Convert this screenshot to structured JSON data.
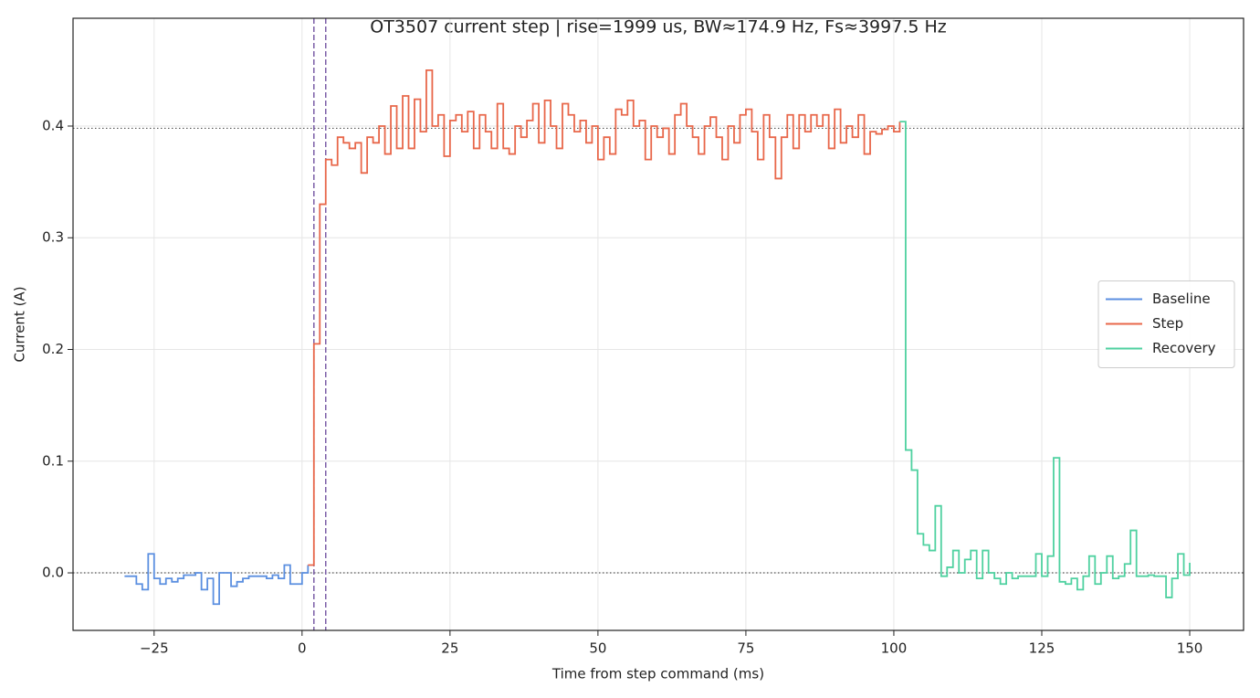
{
  "chart_data": {
    "type": "line",
    "drawstyle": "steps-post",
    "title": "OT3507 current step | rise=1999 us, BW≈174.9 Hz, Fs≈3997.5 Hz",
    "xlabel": "Time from step command (ms)",
    "ylabel": "Current (A)",
    "xlim": [
      -38.7,
      159.1
    ],
    "ylim": [
      -0.0515,
      0.4965
    ],
    "xticks": [
      {
        "value": -25,
        "label": "−25"
      },
      0,
      25,
      50,
      75,
      100,
      125,
      150
    ],
    "yticks": [
      {
        "value": 0,
        "label": "0.0"
      },
      0.1,
      0.2,
      0.3,
      0.4
    ],
    "grid": true,
    "legend": "center right",
    "hlines": [
      0,
      0.398
    ],
    "vlines": [
      2.0,
      4.0
    ],
    "series": [
      {
        "name": "Baseline",
        "color": "#5b8fe0",
        "x": [
          -30,
          -29,
          -28,
          -27,
          -26,
          -25,
          -24,
          -23,
          -22,
          -21,
          -20,
          -19,
          -18,
          -17,
          -16,
          -15,
          -14,
          -13,
          -12,
          -11,
          -10,
          -9,
          -8,
          -7,
          -6,
          -5,
          -4,
          -3,
          -2,
          -1,
          0,
          1
        ],
        "values": [
          -0.003,
          -0.003,
          -0.01,
          -0.015,
          0.017,
          -0.005,
          -0.01,
          -0.005,
          -0.008,
          -0.005,
          -0.002,
          -0.002,
          0.0,
          -0.015,
          -0.005,
          -0.028,
          0.0,
          0.0,
          -0.012,
          -0.008,
          -0.005,
          -0.003,
          -0.003,
          -0.003,
          -0.005,
          -0.002,
          -0.005,
          0.007,
          -0.01,
          -0.01,
          0.0,
          0.007
        ]
      },
      {
        "name": "Step",
        "color": "#e8674a",
        "x": [
          1,
          2,
          3,
          4,
          5,
          6,
          7,
          8,
          9,
          10,
          11,
          12,
          13,
          14,
          15,
          16,
          17,
          18,
          19,
          20,
          21,
          22,
          23,
          24,
          25,
          26,
          27,
          28,
          29,
          30,
          31,
          32,
          33,
          34,
          35,
          36,
          37,
          38,
          39,
          40,
          41,
          42,
          43,
          44,
          45,
          46,
          47,
          48,
          49,
          50,
          51,
          52,
          53,
          54,
          55,
          56,
          57,
          58,
          59,
          60,
          61,
          62,
          63,
          64,
          65,
          66,
          67,
          68,
          69,
          70,
          71,
          72,
          73,
          74,
          75,
          76,
          77,
          78,
          79,
          80,
          81,
          82,
          83,
          84,
          85,
          86,
          87,
          88,
          89,
          90,
          91,
          92,
          93,
          94,
          95,
          96,
          97,
          98,
          99,
          100,
          101
        ],
        "values": [
          0.007,
          0.205,
          0.33,
          0.37,
          0.365,
          0.39,
          0.385,
          0.38,
          0.385,
          0.358,
          0.39,
          0.385,
          0.4,
          0.375,
          0.418,
          0.38,
          0.427,
          0.38,
          0.424,
          0.395,
          0.45,
          0.4,
          0.41,
          0.373,
          0.405,
          0.41,
          0.395,
          0.413,
          0.38,
          0.41,
          0.395,
          0.38,
          0.42,
          0.38,
          0.375,
          0.4,
          0.39,
          0.405,
          0.42,
          0.385,
          0.423,
          0.4,
          0.38,
          0.42,
          0.41,
          0.395,
          0.405,
          0.385,
          0.4,
          0.37,
          0.39,
          0.375,
          0.415,
          0.41,
          0.423,
          0.4,
          0.405,
          0.37,
          0.4,
          0.39,
          0.398,
          0.375,
          0.41,
          0.42,
          0.4,
          0.39,
          0.375,
          0.4,
          0.408,
          0.39,
          0.37,
          0.4,
          0.385,
          0.41,
          0.415,
          0.395,
          0.37,
          0.41,
          0.39,
          0.353,
          0.39,
          0.41,
          0.38,
          0.41,
          0.395,
          0.41,
          0.4,
          0.41,
          0.38,
          0.415,
          0.385,
          0.4,
          0.39,
          0.41,
          0.375,
          0.395,
          0.393,
          0.397,
          0.4,
          0.395,
          0.404
        ]
      },
      {
        "name": "Recovery",
        "color": "#4fd1a0",
        "x": [
          101,
          102,
          103,
          104,
          105,
          106,
          107,
          108,
          109,
          110,
          111,
          112,
          113,
          114,
          115,
          116,
          117,
          118,
          119,
          120,
          121,
          122,
          123,
          124,
          125,
          126,
          127,
          128,
          129,
          130,
          131,
          132,
          133,
          134,
          135,
          136,
          137,
          138,
          139,
          140,
          141,
          142,
          143,
          144,
          145,
          146,
          147,
          148,
          149,
          150
        ],
        "values": [
          0.404,
          0.11,
          0.092,
          0.035,
          0.025,
          0.02,
          0.06,
          -0.003,
          0.005,
          0.02,
          0.0,
          0.012,
          0.02,
          -0.005,
          0.02,
          0.0,
          -0.005,
          -0.01,
          0.0,
          -0.005,
          -0.003,
          -0.003,
          -0.003,
          0.017,
          -0.003,
          0.015,
          0.103,
          -0.008,
          -0.01,
          -0.005,
          -0.015,
          -0.003,
          0.015,
          -0.01,
          0.0,
          0.015,
          -0.005,
          -0.003,
          0.008,
          0.038,
          -0.003,
          -0.003,
          -0.002,
          -0.003,
          -0.003,
          -0.022,
          -0.005,
          0.017,
          -0.002,
          0.009
        ]
      }
    ]
  }
}
